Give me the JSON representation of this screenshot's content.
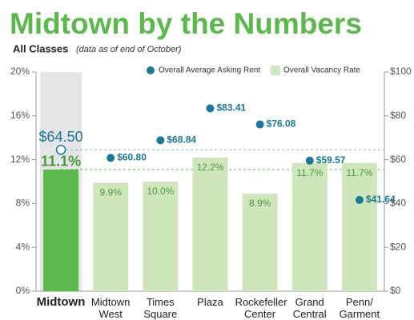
{
  "chart_data": {
    "type": "bar",
    "title": "Midtown by the Numbers",
    "subtitle": "All Classes",
    "note": "(data as of end of October)",
    "categories": [
      "Midtown",
      "Midtown West",
      "Times Square",
      "Plaza",
      "Rockefeller Center",
      "Grand Central",
      "Penn/ Garment"
    ],
    "highlight": "Midtown",
    "series": [
      {
        "name": "Overall Vacancy Rate",
        "type": "bar",
        "color": "#cfe6bd",
        "highlight_color": "#5bb84a",
        "label_color": "#4a9a3a",
        "values": [
          11.1,
          9.9,
          10.0,
          12.2,
          8.9,
          11.7,
          11.7
        ],
        "value_labels": [
          "11.1%",
          "9.9%",
          "10.0%",
          "12.2%",
          "8.9%",
          "11.7%",
          "11.7%"
        ]
      },
      {
        "name": "Overall Average Asking Rent",
        "type": "scatter",
        "axis": "y2",
        "color": "#1b7898",
        "values": [
          64.5,
          60.8,
          68.84,
          83.41,
          76.08,
          59.57,
          41.64
        ],
        "value_labels": [
          "$64.50",
          "$60.80",
          "$68.84",
          "$83.41",
          "$76.08",
          "$59.57",
          "$41.64"
        ]
      }
    ],
    "ylim": [
      0,
      20
    ],
    "yticks": [
      {
        "value": 0,
        "label": "0%"
      },
      {
        "value": 4,
        "label": "4%"
      },
      {
        "value": 8,
        "label": "8%"
      },
      {
        "value": 12,
        "label": "12%"
      },
      {
        "value": 16,
        "label": "16%"
      },
      {
        "value": 20,
        "label": "20%"
      }
    ],
    "y2lim": [
      0,
      100
    ],
    "y2ticks": [
      {
        "value": 0,
        "label": "$0"
      },
      {
        "value": 20,
        "label": "$20"
      },
      {
        "value": 40,
        "label": "$40"
      },
      {
        "value": 60,
        "label": "$60"
      },
      {
        "value": 80,
        "label": "$80"
      },
      {
        "value": 100,
        "label": "$100"
      }
    ],
    "grid": false
  }
}
